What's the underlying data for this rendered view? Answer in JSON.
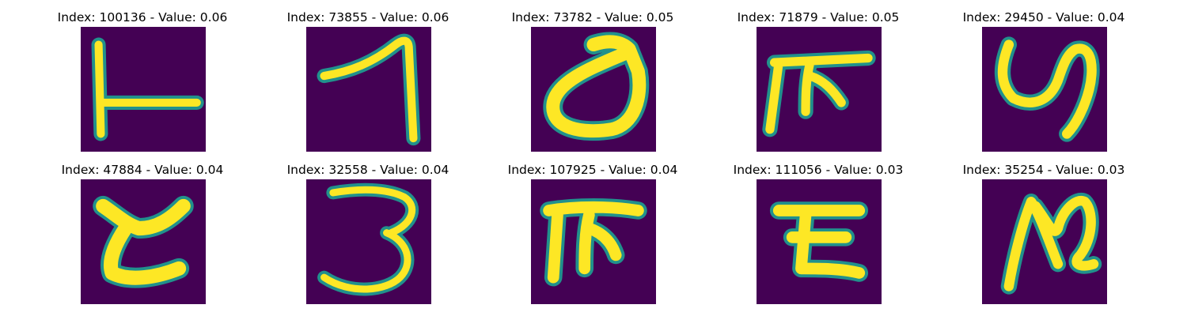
{
  "panels": [
    {
      "title": "Index: 100136 - Value: 0.06",
      "glyph": "L-shape"
    },
    {
      "title": "Index: 73855 - Value: 0.06",
      "glyph": "hook-seven"
    },
    {
      "title": "Index: 73782 - Value: 0.05",
      "glyph": "looped-d"
    },
    {
      "title": "Index: 71879 - Value: 0.05",
      "glyph": "pi-like"
    },
    {
      "title": "Index: 29450 - Value: 0.04",
      "glyph": "y-like"
    },
    {
      "title": "Index: 47884 - Value: 0.04",
      "glyph": "e-like"
    },
    {
      "title": "Index: 32558 - Value: 0.04",
      "glyph": "three"
    },
    {
      "title": "Index: 107925 - Value: 0.04",
      "glyph": "pi-like-2"
    },
    {
      "title": "Index: 111056 - Value: 0.03",
      "glyph": "z-like"
    },
    {
      "title": "Index: 35254 - Value: 0.03",
      "glyph": "n-like"
    }
  ],
  "colors": {
    "background": "#440154",
    "stroke_mid": "#21918c",
    "stroke_core": "#fde725"
  }
}
